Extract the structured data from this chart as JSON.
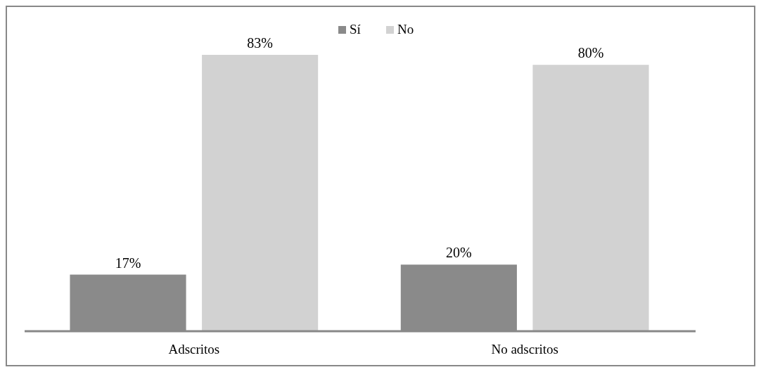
{
  "chart_data": {
    "type": "bar",
    "categories": [
      "Adscritos",
      "No adscritos"
    ],
    "series": [
      {
        "name": "Sí",
        "color": "#8a8a8a",
        "values": [
          17,
          20
        ],
        "value_labels": [
          "17%",
          "20%"
        ]
      },
      {
        "name": "No",
        "color": "#d2d2d2",
        "values": [
          83,
          80
        ],
        "value_labels": [
          "83%",
          "80%"
        ]
      }
    ],
    "legend": "top"
  }
}
